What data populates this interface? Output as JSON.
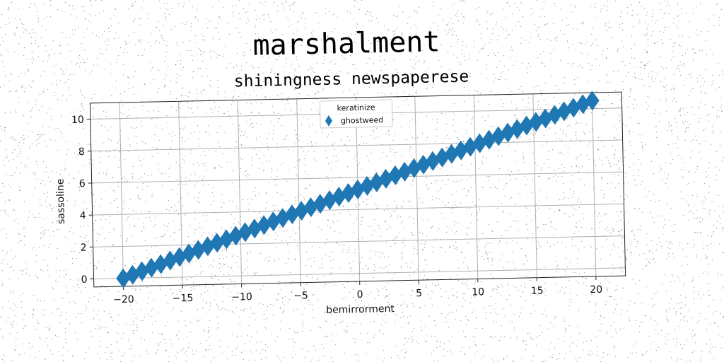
{
  "chart_data": {
    "type": "scatter",
    "title": "marshalment",
    "subtitle": "shiningness newspaperese",
    "xlabel": "bemirrorment",
    "ylabel": "sassoline",
    "xlim": [
      -22.5,
      22.5
    ],
    "ylim": [
      -0.5,
      11.0
    ],
    "x_ticks": [
      "−20",
      "−15",
      "−10",
      "−5",
      "0",
      "5",
      "10",
      "15",
      "20"
    ],
    "y_ticks": [
      "0",
      "2",
      "4",
      "6",
      "8",
      "10"
    ],
    "grid": true,
    "legend": {
      "title": "keratinize",
      "placement": "top-center",
      "entries": [
        "ghostweed"
      ]
    },
    "marker": "diamond",
    "series": [
      {
        "name": "ghostweed",
        "color": "#1f77b4",
        "x": [
          -20.0,
          -19.2,
          -18.4,
          -17.6,
          -16.8,
          -16.0,
          -15.2,
          -14.4,
          -13.6,
          -12.8,
          -12.0,
          -11.2,
          -10.4,
          -9.6,
          -8.8,
          -8.0,
          -7.2,
          -6.4,
          -5.6,
          -4.8,
          -4.0,
          -3.2,
          -2.4,
          -1.6,
          -0.8,
          0.0,
          0.8,
          1.6,
          2.4,
          3.2,
          4.0,
          4.8,
          5.6,
          6.4,
          7.2,
          8.0,
          8.8,
          9.6,
          10.4,
          11.2,
          12.0,
          12.8,
          13.6,
          14.4,
          15.2,
          16.0,
          16.8,
          17.6,
          18.4,
          19.2,
          20.0
        ],
        "y": [
          0.0,
          0.21,
          0.42,
          0.63,
          0.84,
          1.05,
          1.26,
          1.47,
          1.68,
          1.89,
          2.1,
          2.31,
          2.52,
          2.73,
          2.94,
          3.15,
          3.36,
          3.57,
          3.78,
          3.99,
          4.2,
          4.41,
          4.62,
          4.83,
          5.04,
          5.25,
          5.46,
          5.67,
          5.88,
          6.09,
          6.3,
          6.51,
          6.72,
          6.93,
          7.14,
          7.35,
          7.56,
          7.77,
          7.98,
          8.19,
          8.4,
          8.61,
          8.82,
          9.03,
          9.24,
          9.45,
          9.66,
          9.87,
          10.08,
          10.29,
          10.5
        ]
      }
    ]
  }
}
